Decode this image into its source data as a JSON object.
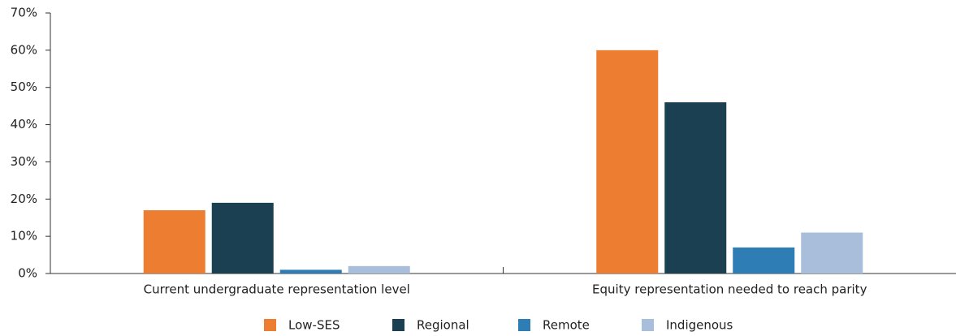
{
  "chart_data": {
    "type": "bar",
    "categories": [
      "Current undergraduate representation level",
      "Equity representation needed to reach parity"
    ],
    "series": [
      {
        "name": "Low-SES",
        "color": "#ed7d31",
        "values": [
          17,
          60
        ]
      },
      {
        "name": "Regional",
        "color": "#1a4052",
        "values": [
          19,
          46
        ]
      },
      {
        "name": "Remote",
        "color": "#2e7db5",
        "values": [
          1,
          7
        ]
      },
      {
        "name": "Indigenous",
        "color": "#a9bedb",
        "values": [
          2,
          11
        ]
      }
    ],
    "ylim": [
      0,
      70
    ],
    "yticks": [
      {
        "value": 0,
        "label": "0%"
      },
      {
        "value": 10,
        "label": "10%"
      },
      {
        "value": 20,
        "label": "20%"
      },
      {
        "value": 30,
        "label": "30%"
      },
      {
        "value": 40,
        "label": "40%"
      },
      {
        "value": 50,
        "label": "50%"
      },
      {
        "value": 60,
        "label": "60%"
      },
      {
        "value": 70,
        "label": "70%"
      }
    ],
    "grid": false,
    "legend": "bottom"
  }
}
